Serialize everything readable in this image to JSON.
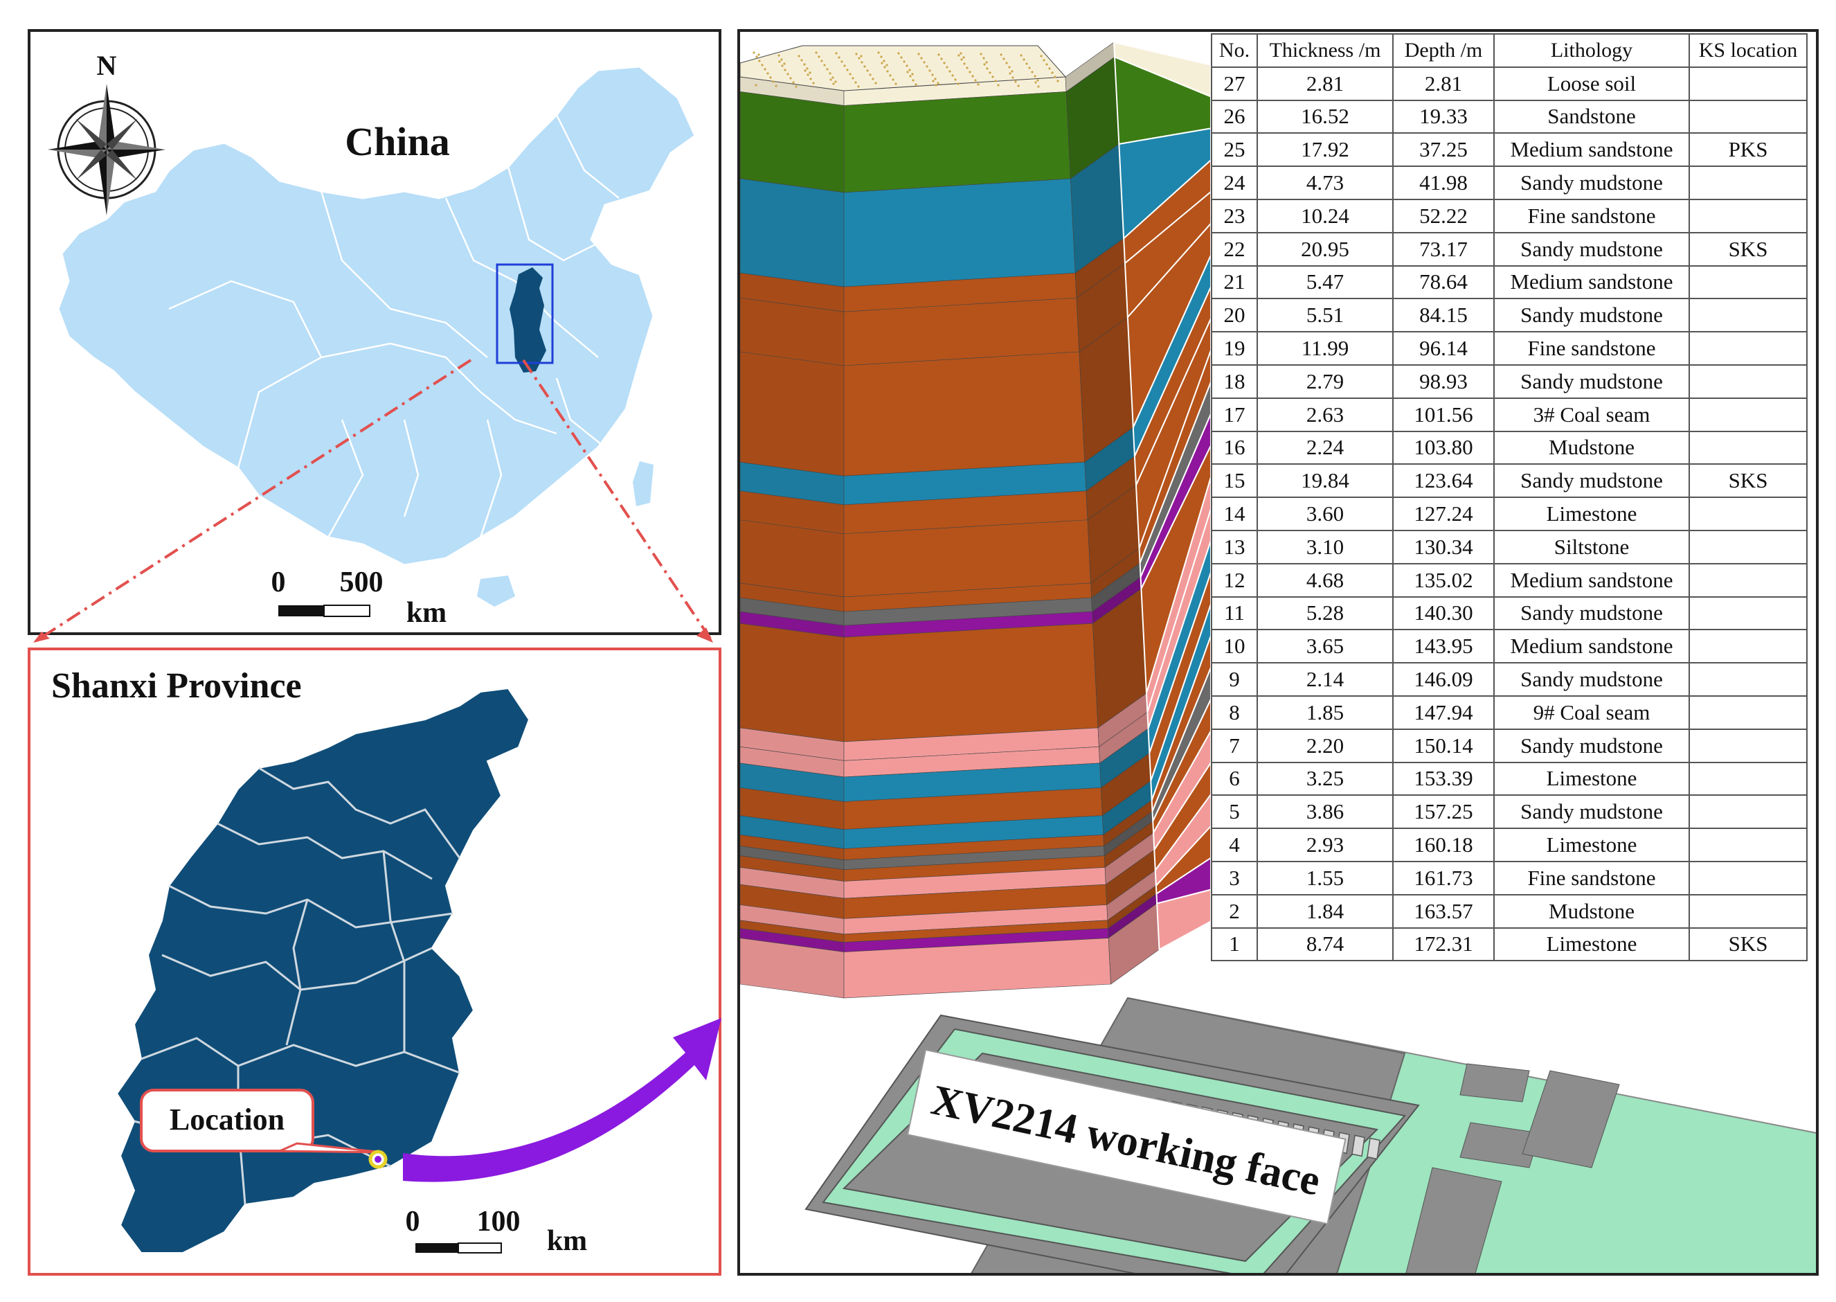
{
  "china_map": {
    "title": "China",
    "north": "N",
    "scale": {
      "zero": "0",
      "value": "500",
      "unit": "km"
    }
  },
  "shanxi_map": {
    "title": "Shanxi Province",
    "location_label": "Location",
    "scale": {
      "zero": "0",
      "value": "100",
      "unit": "km"
    }
  },
  "working_face": "XV2214 working face",
  "colors": {
    "china_fill": "#b8def8",
    "province_fill": "#0f4d78",
    "leader_line": "#e2504e",
    "arrow": "#8a1adf",
    "loose_soil": "#f6efd8",
    "sandstone": "#3c7c14",
    "medium_sandstone": "#1e86ad",
    "sandy_mudstone": "#b5531a",
    "fine_sandstone": "#b5531a",
    "coal_seam": "#6a6a6a",
    "mudstone": "#8f159c",
    "limestone": "#f29a9a",
    "siltstone": "#f29a9a",
    "roadway": "#8d8d8d",
    "working_face_floor": "#9ee5c0"
  },
  "table": {
    "headers": [
      "No.",
      "Thickness /m",
      "Depth /m",
      "Lithology",
      "KS location"
    ],
    "rows": [
      [
        "27",
        "2.81",
        "2.81",
        "Loose soil",
        ""
      ],
      [
        "26",
        "16.52",
        "19.33",
        "Sandstone",
        ""
      ],
      [
        "25",
        "17.92",
        "37.25",
        "Medium sandstone",
        "PKS"
      ],
      [
        "24",
        "4.73",
        "41.98",
        "Sandy mudstone",
        ""
      ],
      [
        "23",
        "10.24",
        "52.22",
        "Fine sandstone",
        ""
      ],
      [
        "22",
        "20.95",
        "73.17",
        "Sandy mudstone",
        "SKS"
      ],
      [
        "21",
        "5.47",
        "78.64",
        "Medium sandstone",
        ""
      ],
      [
        "20",
        "5.51",
        "84.15",
        "Sandy mudstone",
        ""
      ],
      [
        "19",
        "11.99",
        "96.14",
        "Fine sandstone",
        ""
      ],
      [
        "18",
        "2.79",
        "98.93",
        "Sandy mudstone",
        ""
      ],
      [
        "17",
        "2.63",
        "101.56",
        "3# Coal seam",
        ""
      ],
      [
        "16",
        "2.24",
        "103.80",
        "Mudstone",
        ""
      ],
      [
        "15",
        "19.84",
        "123.64",
        "Sandy mudstone",
        "SKS"
      ],
      [
        "14",
        "3.60",
        "127.24",
        "Limestone",
        ""
      ],
      [
        "13",
        "3.10",
        "130.34",
        "Siltstone",
        ""
      ],
      [
        "12",
        "4.68",
        "135.02",
        "Medium sandstone",
        ""
      ],
      [
        "11",
        "5.28",
        "140.30",
        "Sandy mudstone",
        ""
      ],
      [
        "10",
        "3.65",
        "143.95",
        "Medium sandstone",
        ""
      ],
      [
        "9",
        "2.14",
        "146.09",
        "Sandy mudstone",
        ""
      ],
      [
        "8",
        "1.85",
        "147.94",
        "9# Coal seam",
        ""
      ],
      [
        "7",
        "2.20",
        "150.14",
        "Sandy mudstone",
        ""
      ],
      [
        "6",
        "3.25",
        "153.39",
        "Limestone",
        ""
      ],
      [
        "5",
        "3.86",
        "157.25",
        "Sandy mudstone",
        ""
      ],
      [
        "4",
        "2.93",
        "160.18",
        "Limestone",
        ""
      ],
      [
        "3",
        "1.55",
        "161.73",
        "Fine sandstone",
        ""
      ],
      [
        "2",
        "1.84",
        "163.57",
        "Mudstone",
        ""
      ],
      [
        "1",
        "8.74",
        "172.31",
        "Limestone",
        "SKS"
      ]
    ]
  }
}
